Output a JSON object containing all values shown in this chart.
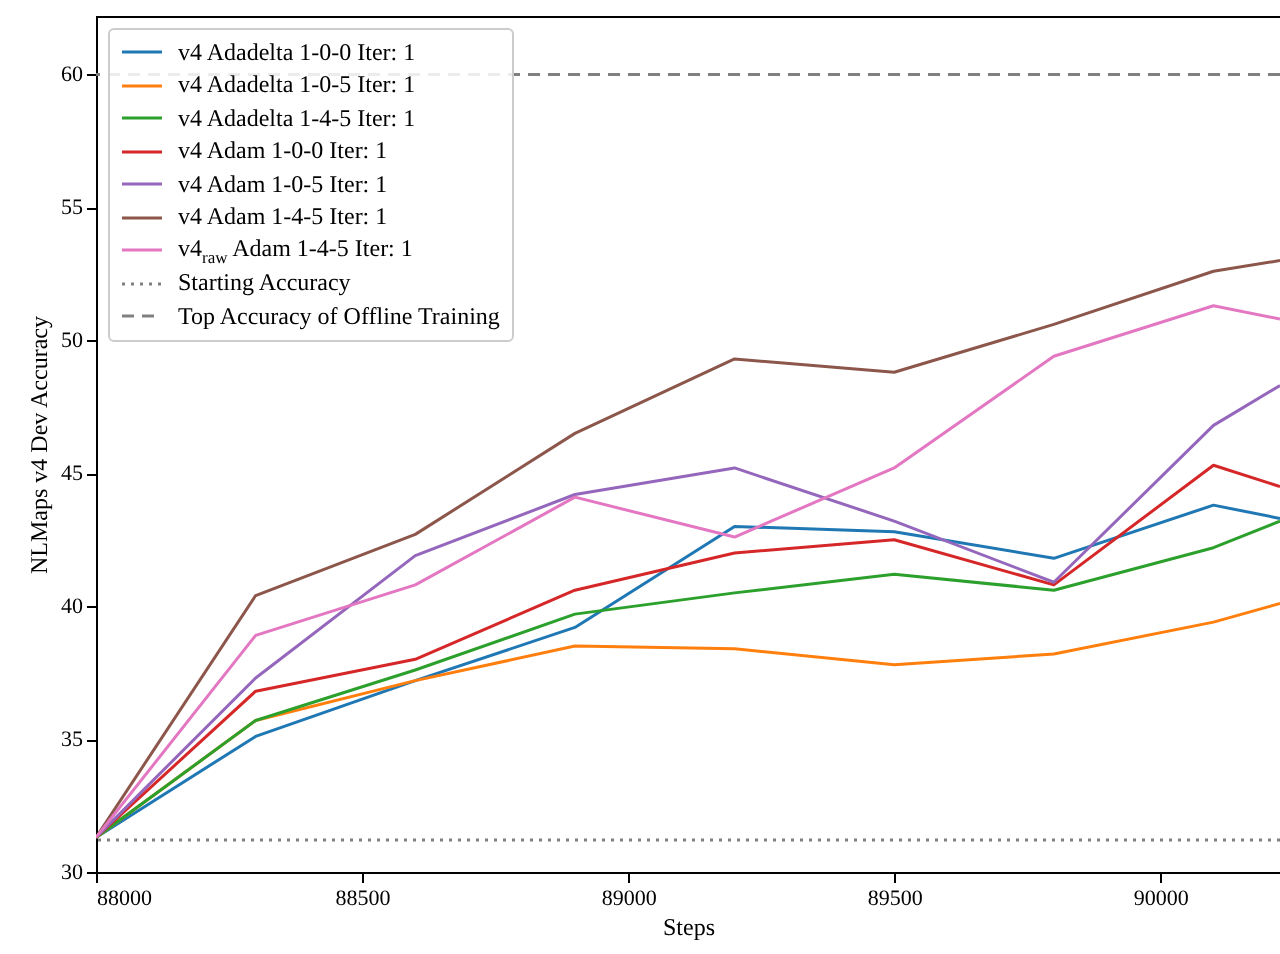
{
  "chart_data": {
    "type": "line",
    "xlabel": "Steps",
    "ylabel": "NLMaps v4 Dev Accuracy",
    "x": [
      88000,
      88300,
      88600,
      88900,
      89200,
      89500,
      89800,
      90100,
      90225
    ],
    "xlim": [
      88000,
      90225
    ],
    "ylim": [
      30,
      62.2
    ],
    "xticks": [
      88000,
      88500,
      89000,
      89500,
      90000
    ],
    "yticks": [
      30,
      35,
      40,
      45,
      50,
      55,
      60
    ],
    "grid": false,
    "legend": "top left",
    "line_style": "solid",
    "marker": "none",
    "series": [
      {
        "name": "v4 Adadelta 1-0-0 Iter: 1",
        "color": "#1f77b4",
        "values": [
          31.3,
          35.1,
          37.2,
          39.2,
          43.0,
          42.8,
          41.8,
          43.8,
          43.3
        ]
      },
      {
        "name": "v4 Adadelta 1-0-5 Iter: 1",
        "color": "#ff7f0e",
        "values": [
          31.3,
          35.7,
          37.2,
          38.5,
          38.4,
          37.8,
          38.2,
          39.4,
          40.1
        ]
      },
      {
        "name": "v4 Adadelta 1-4-5 Iter: 1",
        "color": "#2ca02c",
        "values": [
          31.3,
          35.7,
          37.6,
          39.7,
          40.5,
          41.2,
          40.6,
          42.2,
          43.2
        ]
      },
      {
        "name": "v4 Adam 1-0-0 Iter: 1",
        "color": "#d62728",
        "values": [
          31.3,
          36.8,
          38.0,
          40.6,
          42.0,
          42.5,
          40.8,
          45.3,
          44.5
        ]
      },
      {
        "name": "v4 Adam 1-0-5 Iter: 1",
        "color": "#9467bd",
        "values": [
          31.3,
          37.3,
          41.9,
          44.2,
          45.2,
          43.2,
          40.9,
          46.8,
          48.3
        ]
      },
      {
        "name": "v4 Adam 1-4-5 Iter: 1",
        "color": "#8c564b",
        "values": [
          31.3,
          40.4,
          42.7,
          46.5,
          49.3,
          48.8,
          50.6,
          52.6,
          53.0
        ]
      },
      {
        "name": "v4$_{raw}$ Adam 1-4-5 Iter: 1",
        "color": "#e377c2",
        "values": [
          31.3,
          38.9,
          40.8,
          44.1,
          42.6,
          45.2,
          49.4,
          51.3,
          50.8
        ]
      }
    ],
    "ref_lines": [
      {
        "axis": "y",
        "value": 31.2,
        "label": "Starting Accuracy",
        "color": "#808080",
        "line_style": "dotted"
      },
      {
        "axis": "y",
        "value": 60,
        "label": "Top Accuracy of Offline Training",
        "color": "#808080",
        "line_style": "dashed"
      }
    ]
  }
}
